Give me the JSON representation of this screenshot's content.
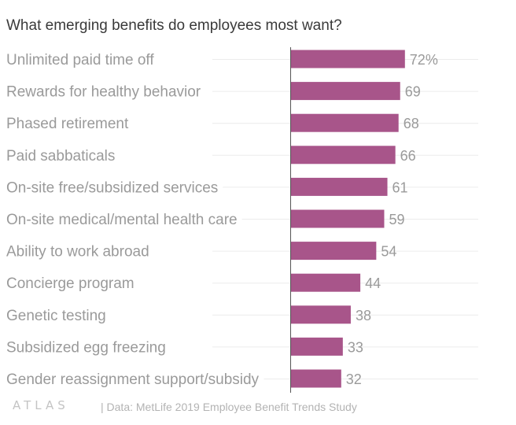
{
  "chart_data": {
    "type": "bar",
    "orientation": "horizontal",
    "title": "What emerging benefits do employees most want?",
    "categories": [
      "Unlimited paid time off",
      "Rewards for healthy behavior",
      "Phased retirement",
      "Paid sabbaticals",
      "On-site free/subsidized services",
      "On-site medical/mental health care",
      "Ability to work abroad",
      "Concierge program",
      "Genetic testing",
      "Subsidized egg freezing",
      "Gender reassignment support/subsidy"
    ],
    "values": [
      72,
      69,
      68,
      66,
      61,
      59,
      54,
      44,
      38,
      33,
      32
    ],
    "value_labels": [
      "72%",
      "69",
      "68",
      "66",
      "61",
      "59",
      "54",
      "44",
      "38",
      "33",
      "32"
    ],
    "unit": "%",
    "xlim": [
      0,
      100
    ],
    "xlabel": "",
    "ylabel": "",
    "grid": true,
    "legend": "none"
  },
  "colors": {
    "bar": "#a8558a",
    "label": "#9a9a9a",
    "title": "#3a3a3a",
    "grid": "#ececec",
    "axis": "#555555"
  },
  "footer": {
    "logo_text": "ATLAS",
    "source": "| Data: MetLife 2019 Employee Benefit Trends Study"
  }
}
